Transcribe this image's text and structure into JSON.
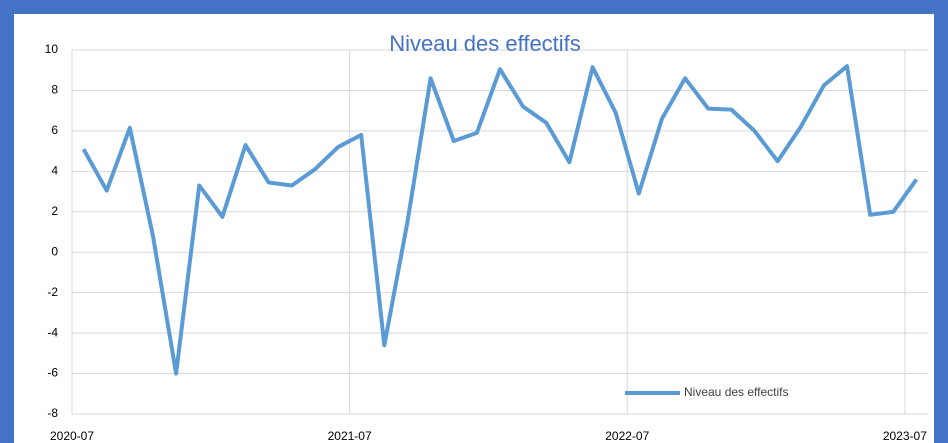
{
  "chart_data": {
    "type": "line",
    "title": "Niveau des effectifs",
    "x": [
      "2020-07",
      "2020-08",
      "2020-09",
      "2020-10",
      "2020-11",
      "2020-12",
      "2021-01",
      "2021-02",
      "2021-03",
      "2021-04",
      "2021-05",
      "2021-06",
      "2021-07",
      "2021-08",
      "2021-09",
      "2021-10",
      "2021-11",
      "2021-12",
      "2022-01",
      "2022-02",
      "2022-03",
      "2022-04",
      "2022-05",
      "2022-06",
      "2022-07",
      "2022-08",
      "2022-09",
      "2022-10",
      "2022-11",
      "2022-12",
      "2023-01",
      "2023-02",
      "2023-03",
      "2023-04",
      "2023-05",
      "2023-06",
      "2023-07"
    ],
    "series": [
      {
        "name": "Niveau des effectifs",
        "color": "#5b9bd5",
        "values": [
          5.1,
          3.05,
          6.15,
          0.8,
          -6.0,
          3.3,
          1.75,
          5.3,
          3.45,
          3.3,
          4.1,
          5.2,
          5.8,
          -4.6,
          1.5,
          8.6,
          5.5,
          5.9,
          9.05,
          7.2,
          6.4,
          4.45,
          9.15,
          6.9,
          2.9,
          6.6,
          8.6,
          7.1,
          7.05,
          6.0,
          4.5,
          6.2,
          8.25,
          9.2,
          1.85,
          2.0,
          3.6
        ]
      }
    ],
    "xlim": [
      "2020-07",
      "2023-08"
    ],
    "xticks": [
      "2020-07",
      "2021-07",
      "2022-07",
      "2023-07"
    ],
    "ylim": [
      -8,
      10
    ],
    "yticks": [
      -8,
      -6,
      -4,
      -2,
      0,
      2,
      4,
      6,
      8,
      10
    ],
    "grid": true,
    "legend": "bottom-right"
  }
}
